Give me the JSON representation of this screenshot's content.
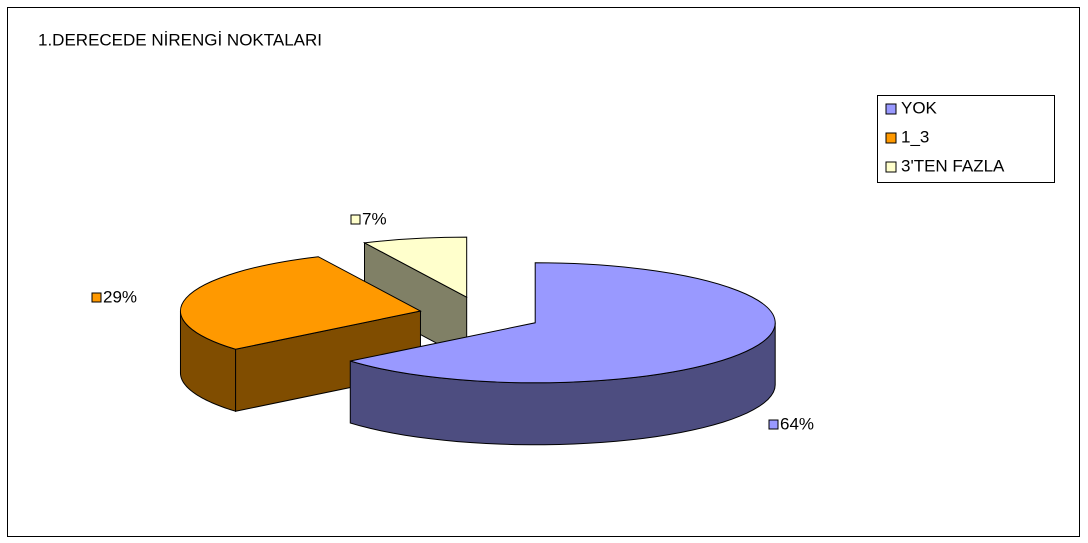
{
  "chart_data": {
    "type": "pie",
    "title": "1.DERECEDE NİRENGİ NOKTALARI",
    "categories": [
      "YOK",
      "1_3",
      "3'TEN FAZLA"
    ],
    "values": [
      64,
      29,
      7
    ],
    "value_labels": [
      "64%",
      "29%",
      "7%"
    ],
    "colors": [
      "#9999ff",
      "#ff9900",
      "#ffffcc"
    ],
    "legend": "top-right",
    "three_d": true,
    "exploded": true
  }
}
